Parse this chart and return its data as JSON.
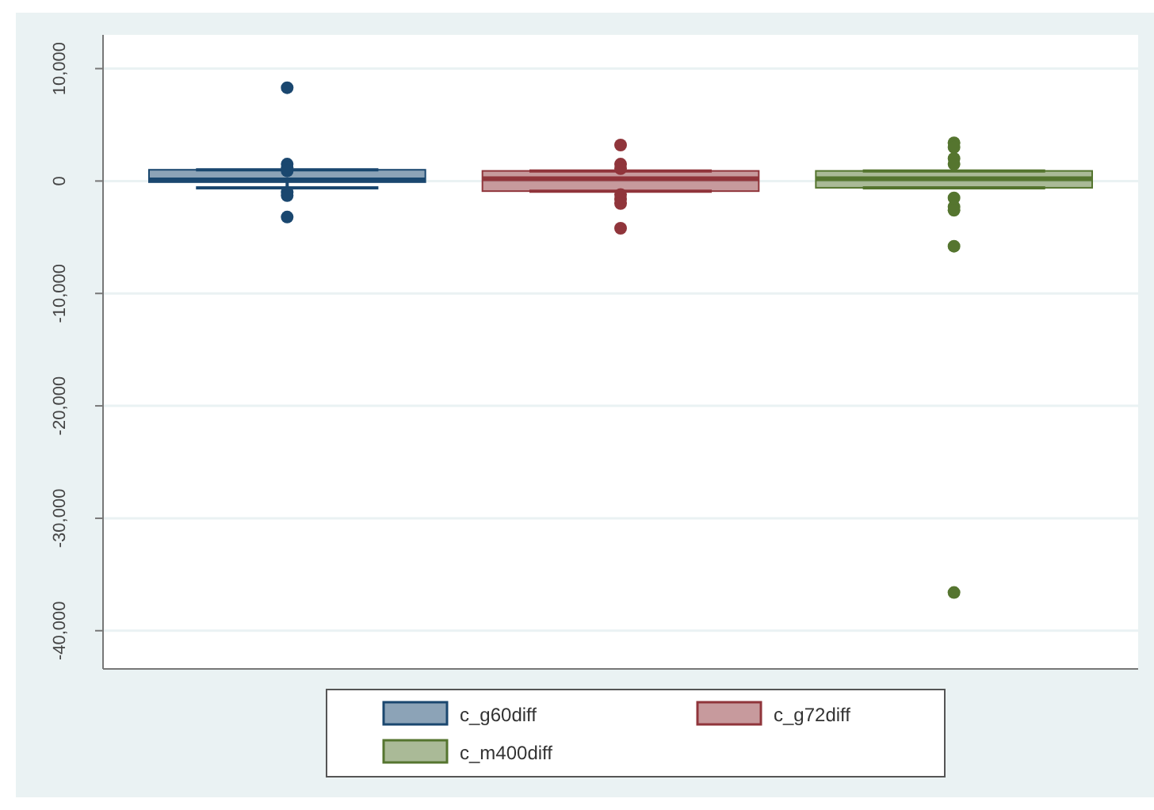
{
  "chart_data": {
    "type": "box",
    "categories": [
      null
    ],
    "ylim": [
      -43400,
      13000
    ],
    "yticks": [
      {
        "value": 10000,
        "label": "10,000"
      },
      0,
      {
        "value": -10000,
        "label": "-10,000"
      },
      {
        "value": -20000,
        "label": "-20,000"
      },
      {
        "value": -30000,
        "label": "-30,000"
      },
      {
        "value": -40000,
        "label": "-40,000"
      }
    ],
    "grid": "y",
    "legend": "bottom",
    "series": [
      {
        "name": "c_g60diff",
        "color": "#1a476f",
        "boxes": [
          {
            "low": -600,
            "q1": -100,
            "median": 100,
            "q3": 1000,
            "high": 1000,
            "outliers": [
              8300,
              1500,
              1200,
              900,
              -1000,
              -1300,
              -3200
            ]
          }
        ]
      },
      {
        "name": "c_g72diff",
        "color": "#90353b",
        "boxes": [
          {
            "low": -900,
            "q1": -900,
            "median": 200,
            "q3": 900,
            "high": 900,
            "outliers": [
              3200,
              1500,
              1100,
              -1200,
              -1600,
              -2000,
              -4200
            ]
          }
        ]
      },
      {
        "name": "c_m400diff",
        "color": "#55752f",
        "boxes": [
          {
            "low": -600,
            "q1": -600,
            "median": 200,
            "q3": 900,
            "high": 900,
            "outliers": [
              3400,
              3000,
              2000,
              1500,
              -1500,
              -2300,
              -2600,
              -5800,
              -36600
            ]
          }
        ]
      }
    ]
  }
}
